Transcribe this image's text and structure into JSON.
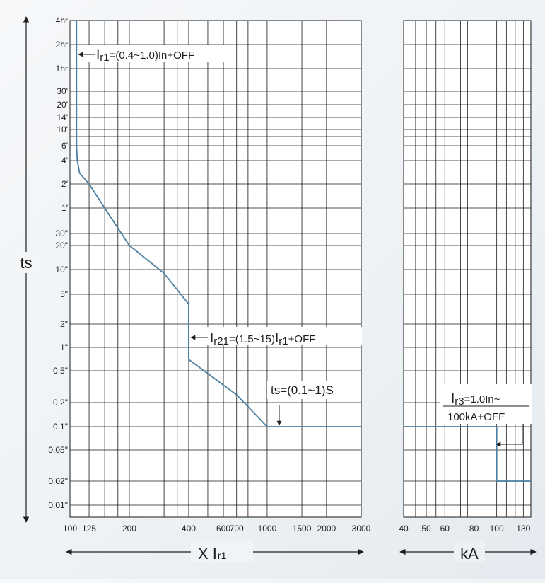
{
  "chart_data": {
    "type": "line",
    "title": "",
    "xlabel_main": "X I",
    "xlabel_main_sub": "r1",
    "xlabel_ka": "kA",
    "ylabel": "ts",
    "y_ticks": [
      {
        "label": "4hr",
        "s": 14400
      },
      {
        "label": "2hr",
        "s": 7200
      },
      {
        "label": "1hr",
        "s": 3600
      },
      {
        "label": "30'",
        "s": 1800
      },
      {
        "label": "20'",
        "s": 1200
      },
      {
        "label": "14'",
        "s": 840
      },
      {
        "label": "10'",
        "s": 600
      },
      {
        "label": "6'",
        "s": 360
      },
      {
        "label": "4'",
        "s": 240
      },
      {
        "label": "2'",
        "s": 120
      },
      {
        "label": "1'",
        "s": 60
      },
      {
        "label": "30\"",
        "s": 30
      },
      {
        "label": "20\"",
        "s": 20
      },
      {
        "label": "10\"",
        "s": 10
      },
      {
        "label": "5\"",
        "s": 5
      },
      {
        "label": "2\"",
        "s": 2
      },
      {
        "label": "1\"",
        "s": 1
      },
      {
        "label": "0.5\"",
        "s": 0.5
      },
      {
        "label": "0.2\"",
        "s": 0.2
      },
      {
        "label": "0.1\"",
        "s": 0.1
      },
      {
        "label": "0.05\"",
        "s": 0.05
      },
      {
        "label": "0.02\"",
        "s": 0.02
      },
      {
        "label": "0.01\"",
        "s": 0.01
      }
    ],
    "y_minor_gridlines_s": [
      480
    ],
    "x_main": {
      "range": [
        100,
        3000
      ],
      "ticks": [
        {
          "label": "100",
          "v": 100
        },
        {
          "label": "125",
          "v": 125
        },
        {
          "label": "200",
          "v": 200
        },
        {
          "label": "400",
          "v": 400
        },
        {
          "label": "600",
          "v": 600
        },
        {
          "label": "700",
          "v": 700
        },
        {
          "label": "1000",
          "v": 1000
        },
        {
          "label": "1500",
          "v": 1500
        },
        {
          "label": "2000",
          "v": 2000
        },
        {
          "label": "3000",
          "v": 3000
        }
      ],
      "gridlines": [
        100,
        125,
        150,
        175,
        200,
        300,
        350,
        400,
        500,
        600,
        700,
        800,
        1000,
        1500,
        2000,
        3000
      ]
    },
    "x_ka": {
      "range": [
        40,
        140
      ],
      "ticks": [
        {
          "label": "40",
          "v": 40
        },
        {
          "label": "50",
          "v": 50
        },
        {
          "label": "60",
          "v": 60
        },
        {
          "label": "80",
          "v": 80
        },
        {
          "label": "100",
          "v": 100
        },
        {
          "label": "130",
          "v": 130
        }
      ],
      "gridlines": [
        40,
        45,
        50,
        55,
        60,
        70,
        75,
        80,
        90,
        100,
        110,
        120,
        130,
        140
      ]
    },
    "series": [
      {
        "axis": "main",
        "points": [
          [
            108,
            14400
          ],
          [
            108,
            360
          ],
          [
            109,
            240
          ],
          [
            112,
            165
          ],
          [
            125,
            120
          ],
          [
            150,
            60
          ],
          [
            200,
            20
          ],
          [
            300,
            9
          ],
          [
            400,
            3.7
          ],
          [
            400,
            0.7
          ],
          [
            700,
            0.25
          ],
          [
            1000,
            0.1
          ],
          [
            3000,
            0.1
          ]
        ]
      },
      {
        "axis": "ka",
        "points": [
          [
            40,
            0.1
          ],
          [
            100,
            0.1
          ],
          [
            100,
            0.02
          ],
          [
            140,
            0.02
          ]
        ]
      }
    ],
    "annotations": {
      "ir1": {
        "main": "I",
        "sub": "r1",
        "rest": "=(0.4~1.0)In+OFF"
      },
      "ir21": {
        "main": "I",
        "sub": "r21",
        "mid": "=(1.5~15)",
        "main2": "I",
        "sub2": "r1",
        "rest": "+OFF"
      },
      "ts": {
        "text": "ts=(0.1~1)S"
      },
      "ir3": {
        "main": "I",
        "sub": "r3",
        "rest": "=1.0In~",
        "line2": "100kA+OFF"
      }
    },
    "colors": {
      "curve": "#4c7ea2",
      "grid": "#1a1a1a",
      "text": "#1e1e1e"
    }
  }
}
